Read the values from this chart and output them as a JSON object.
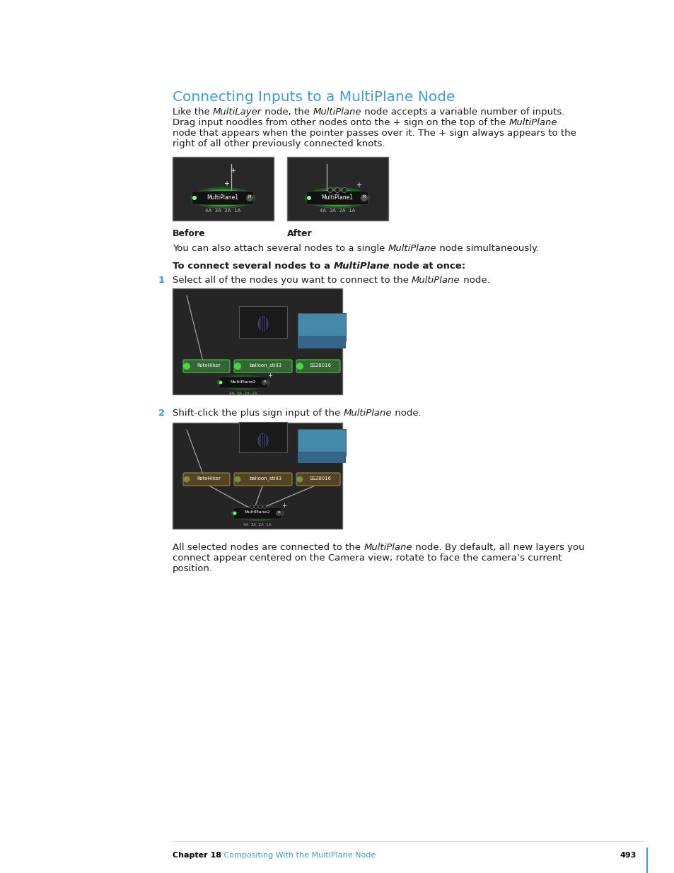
{
  "bg_color": "#ffffff",
  "title": "Connecting Inputs to a MultiPlane Node",
  "title_color": "#3a9fd8",
  "title_fontsize": 14.5,
  "body_fontsize": 9.5,
  "footer_chapter": "Chapter 18",
  "footer_chapter_color": "#000000",
  "footer_link": "   Compositing With the MultiPlane Node",
  "footer_link_color": "#3a9fd8",
  "footer_page": "493",
  "vertical_line_color": "#3a9fd8",
  "label_before": "Before",
  "label_after": "After"
}
